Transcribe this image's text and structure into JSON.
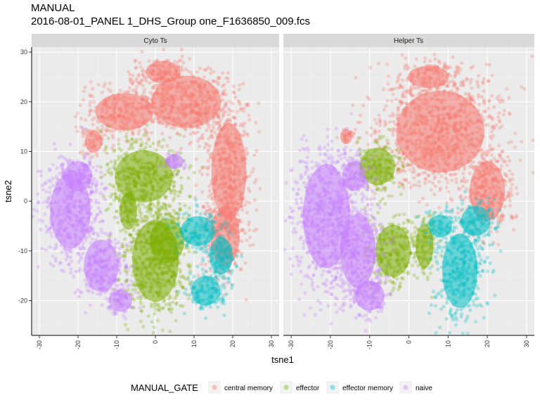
{
  "chart_data": {
    "type": "scatter",
    "title": "MANUAL",
    "subtitle": "2016-08-01_PANEL 1_DHS_Group one_F1636850_009.fcs",
    "xlabel": "tsne1",
    "ylabel": "tsne2",
    "xlim": [
      -32,
      32
    ],
    "ylim": [
      -27,
      31
    ],
    "x_ticks": [
      -30,
      -20,
      -10,
      0,
      10,
      20,
      30
    ],
    "y_ticks": [
      -20,
      -10,
      0,
      10,
      20,
      30
    ],
    "grid": true,
    "legend_title": "MANUAL_GATE",
    "legend_position": "bottom",
    "categories": [
      "central memory",
      "effector",
      "effector memory",
      "naive"
    ],
    "colors": {
      "central memory": "#F8766D",
      "effector": "#7CAE00",
      "effector memory": "#00BFC4",
      "naive": "#C77CFF"
    },
    "panels": [
      {
        "label": "Cyto Ts",
        "series": [
          {
            "name": "central memory",
            "regions": [
              {
                "cx": 8,
                "cy": 20,
                "rx": 12,
                "ry": 7
              },
              {
                "cx": 19,
                "cy": 6,
                "rx": 6,
                "ry": 13
              },
              {
                "cx": -8,
                "cy": 18,
                "rx": 10,
                "ry": 5
              },
              {
                "cx": 18,
                "cy": -7,
                "rx": 5,
                "ry": 8
              },
              {
                "cx": -16,
                "cy": 12,
                "rx": 3,
                "ry": 3
              },
              {
                "cx": 2,
                "cy": 26,
                "rx": 6,
                "ry": 3
              }
            ]
          },
          {
            "name": "effector",
            "regions": [
              {
                "cx": -3,
                "cy": 5,
                "rx": 10,
                "ry": 7
              },
              {
                "cx": 0,
                "cy": -12,
                "rx": 8,
                "ry": 11
              },
              {
                "cx": 3,
                "cy": -8,
                "rx": 6,
                "ry": 6
              },
              {
                "cx": -7,
                "cy": -2,
                "rx": 3,
                "ry": 5
              }
            ]
          },
          {
            "name": "effector memory",
            "regions": [
              {
                "cx": 11,
                "cy": -6,
                "rx": 6,
                "ry": 4
              },
              {
                "cx": 13,
                "cy": -18,
                "rx": 5,
                "ry": 4
              },
              {
                "cx": 17,
                "cy": -11,
                "rx": 4,
                "ry": 5
              }
            ]
          },
          {
            "name": "naive",
            "regions": [
              {
                "cx": -22,
                "cy": -2,
                "rx": 7,
                "ry": 10
              },
              {
                "cx": -14,
                "cy": -13,
                "rx": 6,
                "ry": 7
              },
              {
                "cx": -20,
                "cy": 5,
                "rx": 5,
                "ry": 4
              },
              {
                "cx": -9,
                "cy": -20,
                "rx": 4,
                "ry": 3
              },
              {
                "cx": 5,
                "cy": 8,
                "rx": 3,
                "ry": 2
              }
            ]
          }
        ]
      },
      {
        "label": "Helper Ts",
        "series": [
          {
            "name": "central memory",
            "regions": [
              {
                "cx": 8,
                "cy": 14,
                "rx": 15,
                "ry": 11
              },
              {
                "cx": 20,
                "cy": 2,
                "rx": 6,
                "ry": 8
              },
              {
                "cx": 5,
                "cy": 25,
                "rx": 7,
                "ry": 3
              },
              {
                "cx": -16,
                "cy": 13,
                "rx": 2,
                "ry": 2
              }
            ]
          },
          {
            "name": "effector",
            "regions": [
              {
                "cx": -8,
                "cy": 7,
                "rx": 6,
                "ry": 5
              },
              {
                "cx": -4,
                "cy": -10,
                "rx": 6,
                "ry": 7
              },
              {
                "cx": 4,
                "cy": -9,
                "rx": 3,
                "ry": 6
              }
            ]
          },
          {
            "name": "effector memory",
            "regions": [
              {
                "cx": 13,
                "cy": -14,
                "rx": 6,
                "ry": 10
              },
              {
                "cx": 8,
                "cy": -5,
                "rx": 4,
                "ry": 3
              },
              {
                "cx": 17,
                "cy": -4,
                "rx": 5,
                "ry": 4
              }
            ]
          },
          {
            "name": "naive",
            "regions": [
              {
                "cx": -21,
                "cy": -3,
                "rx": 8,
                "ry": 14
              },
              {
                "cx": -13,
                "cy": -10,
                "rx": 6,
                "ry": 10
              },
              {
                "cx": -10,
                "cy": -19,
                "rx": 5,
                "ry": 4
              },
              {
                "cx": -14,
                "cy": 5,
                "rx": 4,
                "ry": 4
              }
            ]
          }
        ]
      }
    ]
  }
}
